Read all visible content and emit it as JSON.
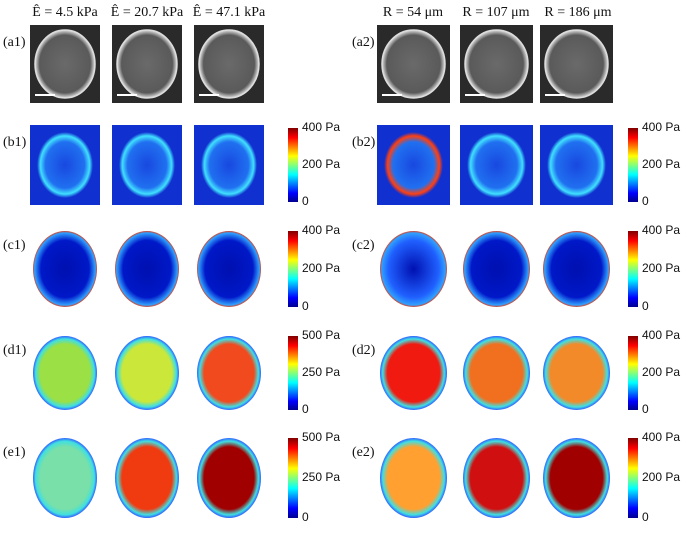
{
  "columns": [
    {
      "headers": [
        "Ê = 4.5 kPa",
        "Ê = 20.7 kPa",
        "Ê = 47.1 kPa"
      ],
      "rows": [
        {
          "label": "(a1)"
        },
        {
          "label": "(b1)",
          "colorbar": [
            "400 Pa",
            "200 Pa",
            "0"
          ]
        },
        {
          "label": "(c1)",
          "colorbar": [
            "400 Pa",
            "200 Pa",
            "0"
          ]
        },
        {
          "label": "(d1)",
          "colorbar": [
            "500 Pa",
            "250 Pa",
            "0"
          ]
        },
        {
          "label": "(e1)",
          "colorbar": [
            "500 Pa",
            "250 Pa",
            "0"
          ]
        }
      ]
    },
    {
      "headers": [
        "R = 54 μm",
        "R = 107 μm",
        "R = 186 μm"
      ],
      "rows": [
        {
          "label": "(a2)"
        },
        {
          "label": "(b2)",
          "colorbar": [
            "400 Pa",
            "200 Pa",
            "0"
          ]
        },
        {
          "label": "(c2)",
          "colorbar": [
            "400 Pa",
            "200 Pa",
            "0"
          ]
        },
        {
          "label": "(d2)",
          "colorbar": [
            "400 Pa",
            "200 Pa",
            "0"
          ]
        },
        {
          "label": "(e2)",
          "colorbar": [
            "400 Pa",
            "200 Pa",
            "0"
          ]
        }
      ]
    }
  ]
}
